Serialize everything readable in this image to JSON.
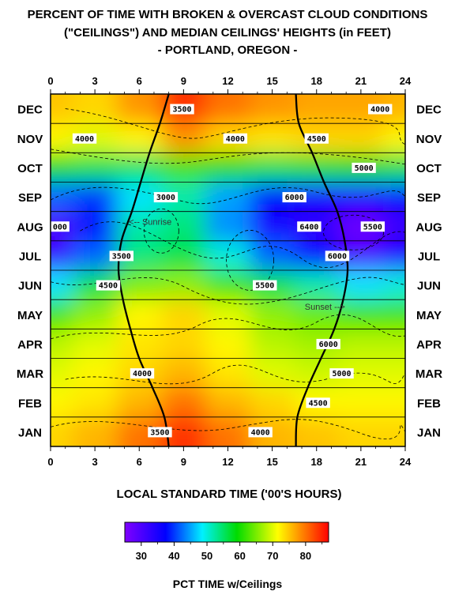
{
  "chart_data": {
    "type": "heatmap",
    "title_lines": [
      "PERCENT OF TIME WITH BROKEN & OVERCAST CLOUD CONDITIONS",
      "(\"CEILINGS\") AND MEDIAN CEILINGS' HEIGHTS (in FEET)",
      "- PORTLAND, OREGON -"
    ],
    "xlabel": "LOCAL STANDARD TIME ('00'S HOURS)",
    "colorbar_label": "PCT TIME w/Ceilings",
    "x_ticks": [
      "0",
      "3",
      "6",
      "9",
      "12",
      "15",
      "18",
      "21",
      "24"
    ],
    "xlim": [
      0,
      24
    ],
    "months": [
      "DEC",
      "NOV",
      "OCT",
      "SEP",
      "AUG",
      "JUL",
      "JUN",
      "MAY",
      "APR",
      "MAR",
      "FEB",
      "JAN"
    ],
    "colorbar_ticks": [
      "30",
      "40",
      "50",
      "60",
      "70",
      "80"
    ],
    "colorbar_range": [
      25,
      87
    ],
    "pct_grid_hours": [
      0,
      3,
      6,
      9,
      12,
      15,
      18,
      21,
      24
    ],
    "pct_grid": [
      {
        "month": "DEC",
        "values": [
          75,
          74,
          78,
          84,
          80,
          78,
          77,
          77,
          76
        ]
      },
      {
        "month": "NOV",
        "values": [
          72,
          70,
          72,
          78,
          74,
          73,
          74,
          74,
          72
        ]
      },
      {
        "month": "OCT",
        "values": [
          58,
          56,
          55,
          62,
          60,
          56,
          57,
          58,
          56
        ]
      },
      {
        "month": "SEP",
        "values": [
          42,
          40,
          48,
          52,
          45,
          38,
          35,
          35,
          38
        ]
      },
      {
        "month": "AUG",
        "values": [
          30,
          38,
          52,
          54,
          44,
          35,
          33,
          27,
          32
        ]
      },
      {
        "month": "JUL",
        "values": [
          32,
          42,
          54,
          56,
          50,
          42,
          38,
          30,
          34
        ]
      },
      {
        "month": "JUN",
        "values": [
          48,
          56,
          65,
          66,
          62,
          56,
          52,
          48,
          50
        ]
      },
      {
        "month": "MAY",
        "values": [
          62,
          66,
          72,
          74,
          70,
          66,
          64,
          62,
          62
        ]
      },
      {
        "month": "APR",
        "values": [
          68,
          70,
          73,
          74,
          72,
          68,
          67,
          68,
          68
        ]
      },
      {
        "month": "MAR",
        "values": [
          70,
          72,
          74,
          76,
          73,
          70,
          69,
          70,
          70
        ]
      },
      {
        "month": "FEB",
        "values": [
          72,
          73,
          76,
          80,
          76,
          74,
          72,
          72,
          72
        ]
      },
      {
        "month": "JAN",
        "values": [
          74,
          76,
          80,
          84,
          80,
          76,
          75,
          74,
          74
        ]
      }
    ],
    "sunrise_label": "Sunrise",
    "sunset_label": "Sunset",
    "sunrise_hours": [
      8.0,
      7.4,
      6.7,
      6.1,
      5.5,
      4.8,
      4.6,
      4.9,
      5.4,
      6.0,
      6.9,
      7.7,
      8.0
    ],
    "sunset_hours": [
      16.6,
      16.8,
      17.7,
      18.5,
      19.4,
      19.9,
      20.1,
      19.8,
      19.2,
      18.3,
      17.4,
      16.7,
      16.6
    ],
    "ceiling_height_labels": [
      {
        "text": "3500",
        "hour": 8.9,
        "month": "DEC"
      },
      {
        "text": "4000",
        "hour": 22.3,
        "month": "DEC"
      },
      {
        "text": "4000",
        "hour": 2.3,
        "month": "NOV"
      },
      {
        "text": "4000",
        "hour": 12.5,
        "month": "NOV"
      },
      {
        "text": "4500",
        "hour": 18.0,
        "month": "NOV"
      },
      {
        "text": "5000",
        "hour": 21.2,
        "month": "OCT"
      },
      {
        "text": "3000",
        "hour": 7.8,
        "month": "SEP"
      },
      {
        "text": "6000",
        "hour": 16.5,
        "month": "SEP"
      },
      {
        "text": "000",
        "hour": 0.5,
        "month": "AUG"
      },
      {
        "text": "6400",
        "hour": 17.5,
        "month": "AUG"
      },
      {
        "text": "5500",
        "hour": 21.8,
        "month": "AUG"
      },
      {
        "text": "3500",
        "hour": 4.8,
        "month": "JUL"
      },
      {
        "text": "6000",
        "hour": 19.4,
        "month": "JUL"
      },
      {
        "text": "5500",
        "hour": 14.5,
        "month": "JUN"
      },
      {
        "text": "4500",
        "hour": 3.9,
        "month": "JUN"
      },
      {
        "text": "6000",
        "hour": 18.8,
        "month": "APR"
      },
      {
        "text": "4000",
        "hour": 6.2,
        "month": "MAR"
      },
      {
        "text": "5000",
        "hour": 19.7,
        "month": "MAR"
      },
      {
        "text": "4500",
        "hour": 18.1,
        "month": "FEB"
      },
      {
        "text": "4000",
        "hour": 14.2,
        "month": "JAN"
      },
      {
        "text": "3500",
        "hour": 7.4,
        "month": "JAN"
      }
    ]
  }
}
